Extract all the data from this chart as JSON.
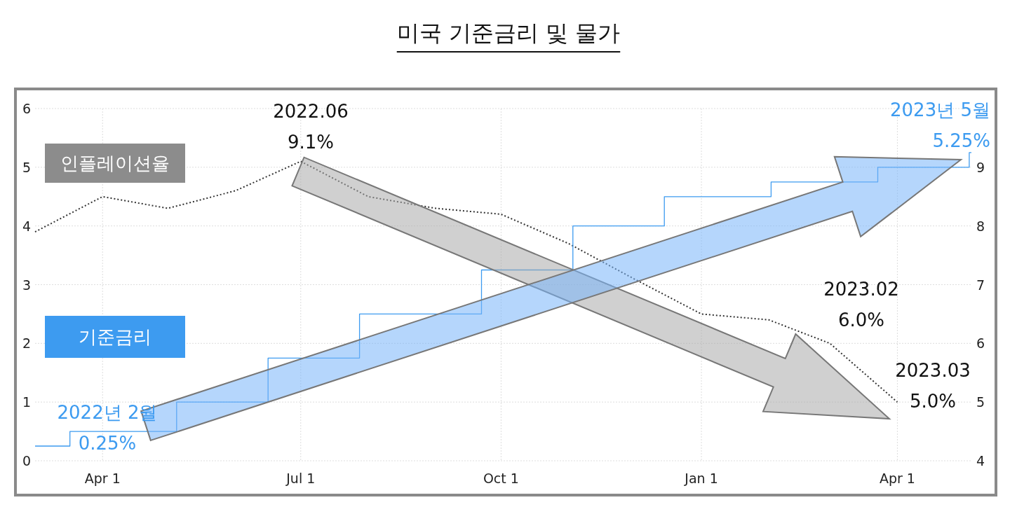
{
  "chart_data": {
    "type": "line",
    "title": "미국 기준금리 및 물가",
    "xlim": [
      "2022-03-01",
      "2023-05-05"
    ],
    "xticks": [
      {
        "value": "2022-04-01",
        "label": "Apr 1"
      },
      {
        "value": "2022-07-01",
        "label": "Jul 1"
      },
      {
        "value": "2022-10-01",
        "label": "Oct 1"
      },
      {
        "value": "2023-01-01",
        "label": "Jan 1"
      },
      {
        "value": "2023-04-01",
        "label": "Apr 1"
      }
    ],
    "ylim": [
      0,
      6
    ],
    "legend": "left",
    "yticks": [
      0,
      1,
      2,
      3,
      4,
      5,
      6
    ],
    "y2lim": [
      4,
      10
    ],
    "y2ticks": [
      4,
      5,
      6,
      7,
      8,
      9
    ],
    "grid": true,
    "series": [
      {
        "name": "인플레이션율",
        "type": "line",
        "axis": "y2",
        "color": "#333333",
        "line_style": "dotted",
        "x": [
          "2022-03-01",
          "2022-04-01",
          "2022-05-01",
          "2022-06-01",
          "2022-07-01",
          "2022-08-01",
          "2022-09-01",
          "2022-10-01",
          "2022-11-01",
          "2022-12-01",
          "2023-01-01",
          "2023-02-01",
          "2023-03-01",
          "2023-04-01"
        ],
        "values": [
          7.9,
          8.5,
          8.3,
          8.6,
          9.1,
          8.5,
          8.3,
          8.2,
          7.7,
          7.1,
          6.5,
          6.4,
          6.0,
          5.0
        ]
      },
      {
        "name": "기준금리",
        "type": "step",
        "axis": "y",
        "color": "#3d9bf0",
        "line_style": "solid",
        "x": [
          "2022-03-01",
          "2022-03-17",
          "2022-05-05",
          "2022-06-16",
          "2022-07-28",
          "2022-09-22",
          "2022-11-03",
          "2022-12-15",
          "2023-02-02",
          "2023-03-23",
          "2023-05-04",
          "2023-05-05"
        ],
        "values": [
          0.25,
          0.5,
          1.0,
          1.75,
          2.5,
          3.25,
          4.0,
          4.5,
          4.75,
          5.0,
          5.25,
          5.25
        ]
      }
    ],
    "annotations": [
      "2022.06\n9.1%",
      "2023.02\n6.0%",
      "2023.03\n5.0%",
      "2022년 2월\n0.25%",
      "2023년 5월\n5.25%"
    ]
  }
}
